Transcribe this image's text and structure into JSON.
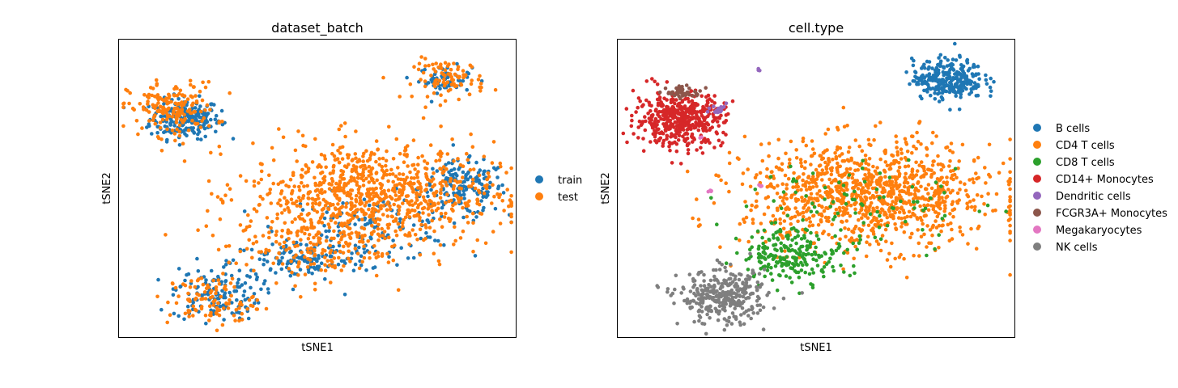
{
  "chart_data": [
    {
      "type": "scatter",
      "title": "dataset_batch",
      "xlabel": "tSNE1",
      "ylabel": "tSNE2",
      "xlim": [
        -45,
        45
      ],
      "ylim": [
        -45,
        45
      ],
      "grid": false,
      "ticks": false,
      "legend_placement": "right",
      "colors": {
        "train": "#1f77b4",
        "test": "#ff7f0e"
      },
      "series": [
        {
          "name": "train",
          "color": "#1f77b4",
          "clusters": [
            {
              "cx": -30,
              "cy": 21,
              "sx": 4,
              "sy": 3,
              "n": 220
            },
            {
              "cx": 29,
              "cy": 33,
              "sx": 3,
              "sy": 2,
              "n": 60
            },
            {
              "cx": 33,
              "cy": 0,
              "sx": 5,
              "sy": 4,
              "n": 160
            },
            {
              "cx": 12,
              "cy": -12,
              "sx": 10,
              "sy": 5,
              "n": 140
            },
            {
              "cx": -4,
              "cy": -22,
              "sx": 8,
              "sy": 3,
              "n": 120
            },
            {
              "cx": -23,
              "cy": -32,
              "sx": 5,
              "sy": 4,
              "n": 130
            }
          ]
        },
        {
          "name": "test",
          "color": "#ff7f0e",
          "clusters": [
            {
              "cx": -33,
              "cy": 24,
              "sx": 5,
              "sy": 4,
              "n": 180
            },
            {
              "cx": 30,
              "cy": 33,
              "sx": 4,
              "sy": 3,
              "n": 90
            },
            {
              "cx": 12,
              "cy": -2,
              "sx": 14,
              "sy": 8,
              "n": 900
            },
            {
              "cx": -24,
              "cy": -34,
              "sx": 5,
              "sy": 4,
              "n": 110
            },
            {
              "cx": -2,
              "cy": -18,
              "sx": 9,
              "sy": 5,
              "n": 150
            }
          ]
        }
      ]
    },
    {
      "type": "scatter",
      "title": "cell.type",
      "xlabel": "tSNE1",
      "ylabel": "tSNE2",
      "xlim": [
        -45,
        45
      ],
      "ylim": [
        -45,
        45
      ],
      "grid": false,
      "ticks": false,
      "legend_placement": "right",
      "series": [
        {
          "name": "B cells",
          "color": "#1f77b4",
          "clusters": [
            {
              "cx": 30,
              "cy": 33,
              "sx": 4,
              "sy": 3,
              "n": 300
            }
          ]
        },
        {
          "name": "CD4 T cells",
          "color": "#ff7f0e",
          "clusters": [
            {
              "cx": 12,
              "cy": -2,
              "sx": 14,
              "sy": 8,
              "n": 1100
            }
          ]
        },
        {
          "name": "CD8 T cells",
          "color": "#2ca02c",
          "clusters": [
            {
              "cx": -5,
              "cy": -20,
              "sx": 6,
              "sy": 4,
              "n": 220
            },
            {
              "cx": 10,
              "cy": -5,
              "sx": 14,
              "sy": 7,
              "n": 90
            }
          ]
        },
        {
          "name": "CD14+ Monocytes",
          "color": "#d62728",
          "clusters": [
            {
              "cx": -31,
              "cy": 21,
              "sx": 5,
              "sy": 4,
              "n": 480
            }
          ]
        },
        {
          "name": "Dendritic cells",
          "color": "#9467bd",
          "clusters": [
            {
              "cx": -22,
              "cy": 24,
              "sx": 1.2,
              "sy": 1,
              "n": 16
            },
            {
              "cx": -13,
              "cy": 36,
              "sx": 0.3,
              "sy": 0.3,
              "n": 3
            }
          ]
        },
        {
          "name": "FCGR3A+ Monocytes",
          "color": "#8c564b",
          "clusters": [
            {
              "cx": -30,
              "cy": 29,
              "sx": 2,
              "sy": 0.8,
              "n": 50
            }
          ]
        },
        {
          "name": "Megakaryocytes",
          "color": "#e377c2",
          "clusters": [
            {
              "cx": -24,
              "cy": -1,
              "sx": 0.3,
              "sy": 0.4,
              "n": 4
            },
            {
              "cx": -13,
              "cy": 1,
              "sx": 0.3,
              "sy": 0.3,
              "n": 3
            },
            {
              "cx": -26,
              "cy": 15,
              "sx": 0.3,
              "sy": 0.3,
              "n": 2
            }
          ]
        },
        {
          "name": "NK cells",
          "color": "#7f7f7f",
          "clusters": [
            {
              "cx": -21,
              "cy": -33,
              "sx": 5,
              "sy": 4,
              "n": 330
            }
          ]
        }
      ]
    }
  ]
}
